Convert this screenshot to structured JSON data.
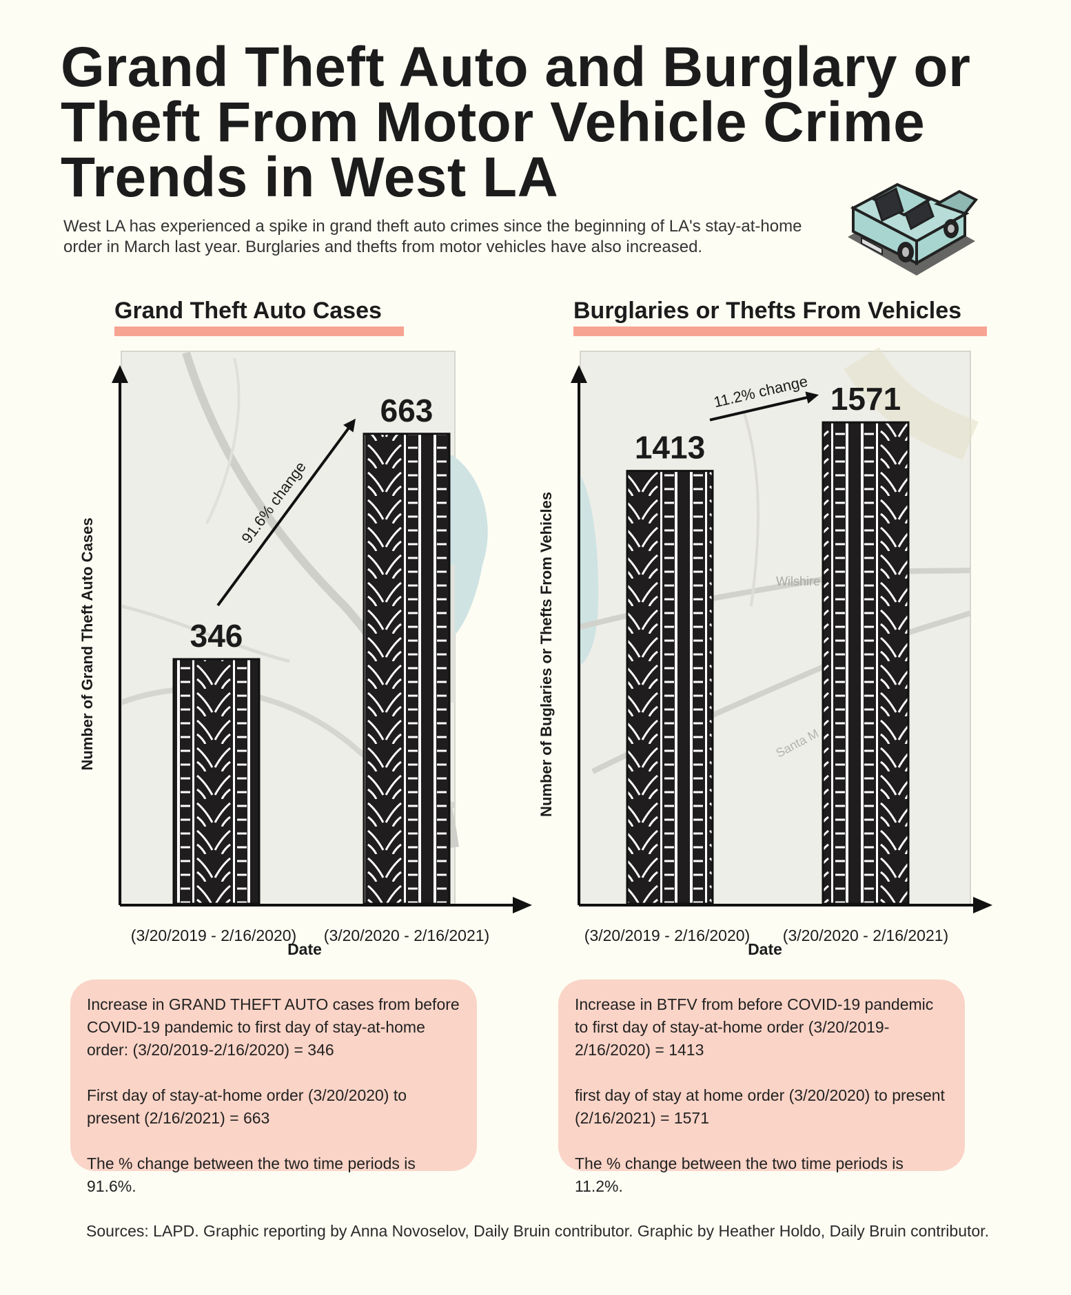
{
  "title": "Grand Theft Auto and Burglary or Theft From Motor Vehicle Crime Trends in West LA",
  "subtitle": "West LA has experienced a spike in grand theft auto crimes since the beginning of LA's stay-at-home order in March last year. Burglaries and thefts from motor vehicles have also increased.",
  "car_icon": "car-icon",
  "map_labels": [
    "Wilshire",
    "Santa M"
  ],
  "colors": {
    "background": "#fdfdf3",
    "accent": "#f7a493",
    "box_fill": "#fad4c7",
    "bar_fill": "#1f1d1d",
    "map_water": "#cfe3e3",
    "car_body": "#a8d5cf"
  },
  "chart_data": [
    {
      "type": "bar",
      "title": "Grand Theft Auto Cases",
      "xlabel": "Date",
      "ylabel": "Number of Grand Theft Auto Cases",
      "categories": [
        "(3/20/2019 - 2/16/2020)",
        "(3/20/2020 - 2/16/2021)"
      ],
      "values": [
        346,
        663
      ],
      "value_labels": [
        "346",
        "663"
      ],
      "change_label": "91.6% change",
      "ylim": [
        0,
        750
      ],
      "grid": false
    },
    {
      "type": "bar",
      "title": "Burglaries or Thefts From Vehicles",
      "xlabel": "Date",
      "ylabel": "Number of Buglaries or Thefts From Vehicles",
      "categories": [
        "(3/20/2019 - 2/16/2020)",
        "(3/20/2020 - 2/16/2021)"
      ],
      "values": [
        1413,
        1571
      ],
      "value_labels": [
        "1413",
        "1571"
      ],
      "change_label": "11.2% change",
      "ylim": [
        0,
        1735
      ],
      "grid": false
    }
  ],
  "info_boxes": [
    {
      "paragraphs": [
        "Increase in GRAND THEFT AUTO cases from before COVID-19 pandemic to first day of stay-at-home order: (3/20/2019-2/16/2020) = 346",
        "First day of stay-at-home order (3/20/2020) to present (2/16/2021) = 663",
        "The % change between the two time periods is 91.6%."
      ]
    },
    {
      "paragraphs": [
        "Increase in BTFV from before COVID-19 pandemic to first day of stay-at-home order (3/20/2019-2/16/2020) = 1413",
        "first day of stay at home order (3/20/2020) to present (2/16/2021) = 1571",
        "The % change between the two time periods is 11.2%."
      ]
    }
  ],
  "sources": "Sources: LAPD. Graphic reporting by Anna Novoselov, Daily Bruin contributor. Graphic by Heather Holdo, Daily Bruin contributor."
}
